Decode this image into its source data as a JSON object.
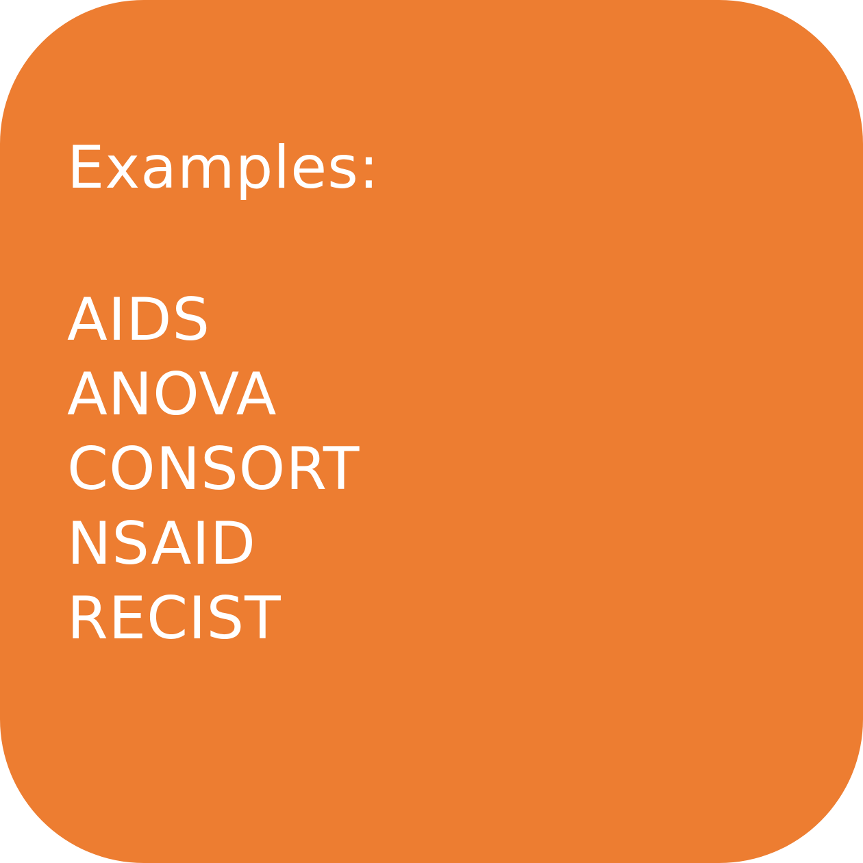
{
  "card": {
    "background_color": "#ed7d31",
    "text_color": "#ffffff",
    "heading": "Examples:",
    "examples": [
      "AIDS",
      "ANOVA",
      "CONSORT",
      "NSAID",
      "RECIST"
    ]
  }
}
